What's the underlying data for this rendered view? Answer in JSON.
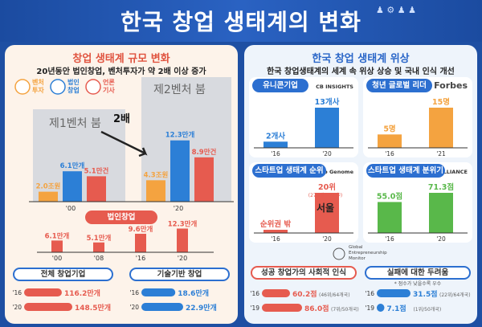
{
  "title": "한국 창업 생태계의 변화",
  "left": {
    "title": "창업 생태계 규모 변화",
    "subtitle": "20년동안 법인창업, 벤처투자가 약 2배 이상 증가",
    "legend": [
      "벤처 투자",
      "법인 창업",
      "언론 기사"
    ],
    "boom1": "제1벤처 붐",
    "boom2": "제2벤처 붐",
    "double": "2배",
    "colors": {
      "blue": "#2c7fd6",
      "orange": "#f4a340",
      "red": "#e65b4f",
      "gray": "#b9bcc2"
    },
    "chart_data": {
      "type": "bar",
      "categories": [
        "'00",
        "'20"
      ],
      "series": [
        {
          "name": "벤처 투자",
          "values": [
            2.0,
            4.3
          ],
          "labels": [
            "2.0조원",
            "4.3조원"
          ]
        },
        {
          "name": "법인 창업",
          "values": [
            6.1,
            12.3
          ],
          "labels": [
            "6.1만개",
            "12.3만개"
          ]
        },
        {
          "name": "언론 기사",
          "values": [
            5.1,
            8.9
          ],
          "labels": [
            "5.1만건",
            "8.9만건"
          ]
        }
      ]
    },
    "corp": {
      "title": "법인창업",
      "chart_data": {
        "type": "bar",
        "categories": [
          "'00",
          "'08",
          "'16",
          "'20"
        ],
        "values": [
          6.1,
          5.1,
          9.6,
          12.3
        ],
        "labels": [
          "6.1만개",
          "5.1만개",
          "9.6만개",
          "12.3만개"
        ]
      }
    },
    "total": {
      "title": "전체 창업기업",
      "chart_data": {
        "type": "bar",
        "categories": [
          "'16",
          "'20"
        ],
        "values": [
          116.2,
          148.5
        ],
        "labels": [
          "116.2만개",
          "148.5만개"
        ]
      }
    },
    "tech": {
      "title": "기술기반 창업",
      "chart_data": {
        "type": "bar",
        "categories": [
          "'16",
          "'20"
        ],
        "values": [
          18.6,
          22.9
        ],
        "labels": [
          "18.6만개",
          "22.9만개"
        ]
      }
    }
  },
  "right": {
    "title": "한국 창업 생태계 위상",
    "subtitle": "한국 창업생태계의 세계 속 위상 상승 및 국내 인식 개선",
    "unicorn": {
      "title": "유니콘기업",
      "brand": "CB INSIGHTS",
      "chart_data": {
        "type": "bar",
        "categories": [
          "'16",
          "'20"
        ],
        "values": [
          2,
          13
        ],
        "labels": [
          "2개사",
          "13개사"
        ]
      }
    },
    "forbes": {
      "title": "청년 글로벌 리더",
      "brand": "Forbes",
      "chart_data": {
        "type": "bar",
        "categories": [
          "'16",
          "'21"
        ],
        "values": [
          5,
          15
        ],
        "labels": [
          "5명",
          "15명"
        ]
      }
    },
    "rank": {
      "title": "스타트업 생태계 순위",
      "brand": "Startup Genome",
      "chart_data": {
        "type": "bar",
        "categories": [
          "'16",
          "'20"
        ],
        "values": [
          0,
          20
        ],
        "labels": [
          "순위권 밖",
          "20위"
        ]
      },
      "note": "(270개 도시 中)",
      "city": "서울"
    },
    "mood": {
      "title": "스타트업 생태계 분위기",
      "brand": "STARTUP ALLIANCE",
      "chart_data": {
        "type": "bar",
        "categories": [
          "'16",
          "'20"
        ],
        "values": [
          55.0,
          71.3
        ],
        "labels": [
          "55.0점",
          "71.3점"
        ]
      }
    },
    "gem": "Global Entrepreneurship Monitor",
    "social": {
      "title": "성공 창업가의 사회적 인식",
      "chart_data": {
        "type": "bar",
        "categories": [
          "'16",
          "'19"
        ],
        "values": [
          60.2,
          86.0
        ],
        "labels": [
          "60.2점",
          "86.0점"
        ],
        "ranks": [
          "(46위/64개국)",
          "(7위/50개국)"
        ]
      }
    },
    "fear": {
      "title": "실패에 대한 두려움",
      "note": "* 점수가 낮을수록 우수",
      "chart_data": {
        "type": "bar",
        "categories": [
          "'16",
          "'19"
        ],
        "values": [
          31.5,
          7.1
        ],
        "labels": [
          "31.5점",
          "7.1점"
        ],
        "ranks": [
          "(22위/64개국)",
          "(1위/50개국)"
        ]
      }
    }
  }
}
